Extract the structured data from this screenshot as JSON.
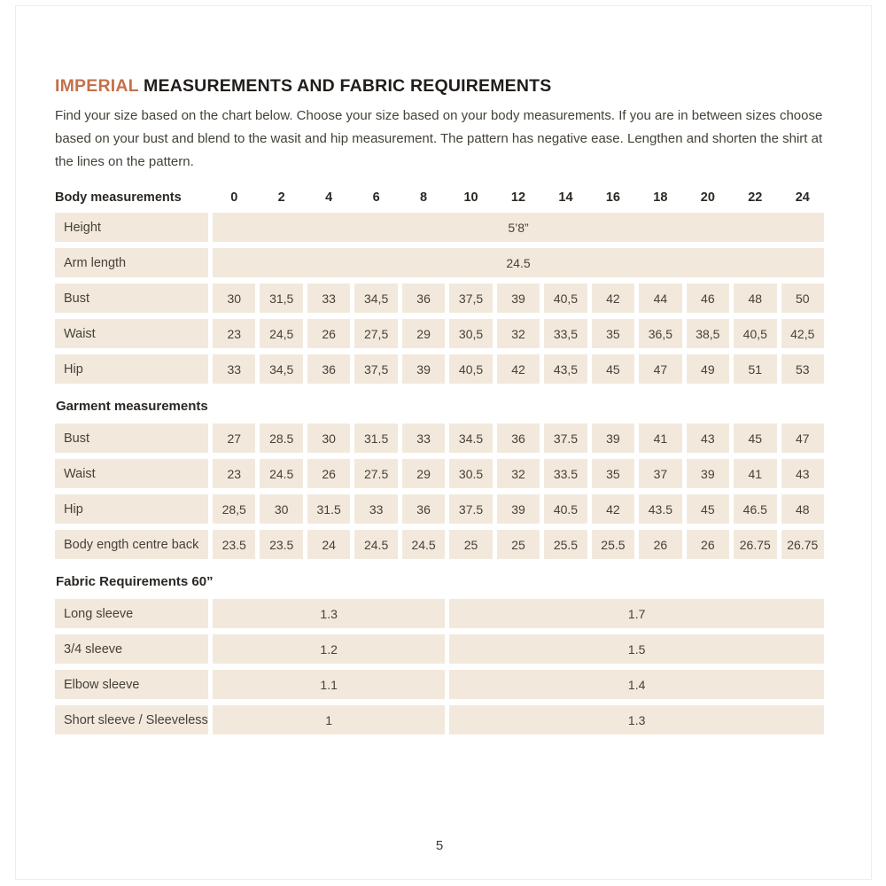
{
  "page": {
    "title_highlight": "IMPERIAL",
    "title_rest": " MEASUREMENTS AND FABRIC REQUIREMENTS",
    "intro": "Find your size based on the chart below. Choose your size based on your body measurements. If you are in between sizes choose based on your bust and blend to the wasit and hip measurement. The pattern has negative ease. Lengthen and shorten the shirt at the lines on the pattern.",
    "page_number": "5"
  },
  "colors": {
    "accent_orange": "#c4714b",
    "cell_beige": "#f2e9dc",
    "heading_dark": "#2b2723",
    "body_text": "#46413a"
  },
  "size_header": {
    "label": "Body measurements",
    "sizes": [
      "0",
      "2",
      "4",
      "6",
      "8",
      "10",
      "12",
      "14",
      "16",
      "18",
      "20",
      "22",
      "24"
    ]
  },
  "body_measurements": {
    "rows": [
      {
        "label": "Height",
        "type": "full-span",
        "value": "5’8”"
      },
      {
        "label": "Arm length",
        "type": "full-span",
        "value": "24.5"
      },
      {
        "label": "Bust",
        "type": "cells",
        "values": [
          "30",
          "31,5",
          "33",
          "34,5",
          "36",
          "37,5",
          "39",
          "40,5",
          "42",
          "44",
          "46",
          "48",
          "50"
        ]
      },
      {
        "label": "Waist",
        "type": "cells",
        "values": [
          "23",
          "24,5",
          "26",
          "27,5",
          "29",
          "30,5",
          "32",
          "33,5",
          "35",
          "36,5",
          "38,5",
          "40,5",
          "42,5"
        ]
      },
      {
        "label": "Hip",
        "type": "cells",
        "values": [
          "33",
          "34,5",
          "36",
          "37,5",
          "39",
          "40,5",
          "42",
          "43,5",
          "45",
          "47",
          "49",
          "51",
          "53"
        ]
      }
    ]
  },
  "garment_measurements": {
    "section_label": "Garment measurements",
    "rows": [
      {
        "label": "Bust",
        "type": "cells",
        "values": [
          "27",
          "28.5",
          "30",
          "31.5",
          "33",
          "34.5",
          "36",
          "37.5",
          "39",
          "41",
          "43",
          "45",
          "47"
        ]
      },
      {
        "label": "Waist",
        "type": "cells",
        "values": [
          "23",
          "24.5",
          "26",
          "27.5",
          "29",
          "30.5",
          "32",
          "33.5",
          "35",
          "37",
          "39",
          "41",
          "43"
        ]
      },
      {
        "label": "Hip",
        "type": "cells",
        "values": [
          "28,5",
          "30",
          "31.5",
          "33",
          "36",
          "37.5",
          "39",
          "40.5",
          "42",
          "43.5",
          "45",
          "46.5",
          "48"
        ]
      },
      {
        "label": "Body ength centre back",
        "type": "cells",
        "values": [
          "23.5",
          "23.5",
          "24",
          "24.5",
          "24.5",
          "25",
          "25",
          "25.5",
          "25.5",
          "26",
          "26",
          "26.75",
          "26.75"
        ]
      }
    ]
  },
  "fabric_requirements": {
    "section_label": "Fabric Requirements 60”",
    "rows": [
      {
        "label": "Long sleeve",
        "left": "1.3",
        "right": "1.7"
      },
      {
        "label": "3/4 sleeve",
        "left": "1.2",
        "right": "1.5"
      },
      {
        "label": "Elbow sleeve",
        "left": "1.1",
        "right": "1.4"
      },
      {
        "label": "Short sleeve / Sleeveless",
        "left": "1",
        "right": "1.3"
      }
    ]
  }
}
